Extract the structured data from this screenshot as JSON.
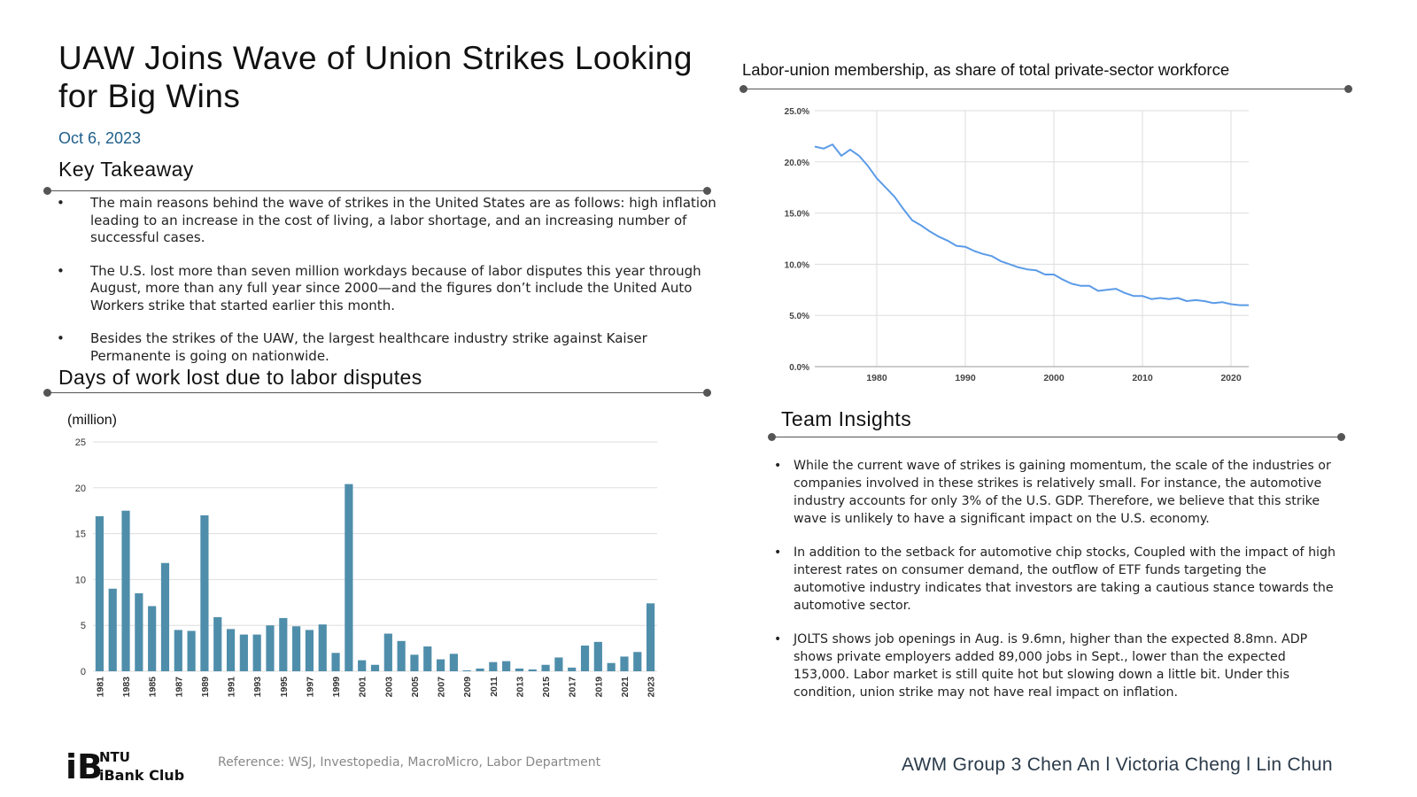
{
  "title": "UAW Joins Wave of Union Strikes Looking for Big Wins",
  "date": "Oct 6, 2023",
  "key_takeaway": {
    "heading": "Key Takeaway",
    "items": [
      "The main reasons behind the wave of strikes in the United States are as follows: high inflation leading to an increase in the cost of living, a labor shortage, and an increasing number of successful cases.",
      "The U.S. lost more than seven million workdays because of labor disputes this year through August, more than any full year since 2000—and the figures don’t include the United Auto Workers strike that started earlier this month.",
      "Besides the strikes of the UAW, the largest healthcare industry strike against Kaiser Permanente is going on nationwide."
    ]
  },
  "days_lost": {
    "heading": "Days of work lost due to labor disputes",
    "unit": "(million)"
  },
  "union_chart_title": "Labor-union membership, as share of total private-sector workforce",
  "team_insights": {
    "heading": "Team Insights",
    "items": [
      "While the current wave of strikes is gaining momentum, the scale of the industries or companies involved in these strikes is relatively small. For instance, the automotive industry accounts for only 3% of the U.S. GDP. Therefore, we believe that this strike wave is unlikely to have a significant impact on the U.S. economy.",
      "In addition to the setback for automotive chip stocks, Coupled with the impact of high interest rates on consumer demand, the outflow of ETF funds targeting the automotive industry indicates that investors are taking a cautious stance towards the automotive sector.",
      "JOLTS shows job openings in Aug. is 9.6mn, higher than the expected 8.8mn. ADP shows private employers added 89,000 jobs in Sept., lower than the expected 153,000. Labor market is still quite hot but slowing down a little bit. Under this condition, union strike may not have real impact on inflation."
    ]
  },
  "reference": "Reference: WSJ, Investopedia, MacroMicro, Labor Department",
  "credits": "AWM Group 3 Chen An l Victoria Cheng l Lin Chun",
  "logo": {
    "mark": "iB",
    "line1": "NTU",
    "line2": "iBank Club"
  },
  "colors": {
    "bar": "#4f8eab",
    "line": "#5b9be8",
    "date": "#1f5f8b",
    "grid": "#dddddd"
  },
  "chart_data": [
    {
      "type": "bar",
      "ylim": [
        0,
        25
      ],
      "yticks": [
        0,
        5,
        10,
        15,
        20,
        25
      ],
      "categories": [
        "1981",
        "1982",
        "1983",
        "1984",
        "1985",
        "1986",
        "1987",
        "1988",
        "1989",
        "1990",
        "1991",
        "1992",
        "1993",
        "1994",
        "1995",
        "1996",
        "1997",
        "1998",
        "1999",
        "2000",
        "2001",
        "2002",
        "2003",
        "2004",
        "2005",
        "2006",
        "2007",
        "2008",
        "2009",
        "2010",
        "2011",
        "2012",
        "2013",
        "2014",
        "2015",
        "2016",
        "2017",
        "2018",
        "2019",
        "2020",
        "2021",
        "2022",
        "2023"
      ],
      "xtick_labels": [
        "1981",
        "1983",
        "1985",
        "1987",
        "1989",
        "1991",
        "1993",
        "1995",
        "1997",
        "1999",
        "2001",
        "2003",
        "2005",
        "2007",
        "2009",
        "2011",
        "2013",
        "2015",
        "2017",
        "2019",
        "2021",
        "2023"
      ],
      "values": [
        16.9,
        9.0,
        17.5,
        8.5,
        7.1,
        11.8,
        4.5,
        4.4,
        17.0,
        5.9,
        4.6,
        4.0,
        4.0,
        5.0,
        5.8,
        4.9,
        4.5,
        5.1,
        2.0,
        20.4,
        1.2,
        0.7,
        4.1,
        3.3,
        1.8,
        2.7,
        1.3,
        1.9,
        0.1,
        0.3,
        1.0,
        1.1,
        0.3,
        0.2,
        0.7,
        1.5,
        0.4,
        2.8,
        3.2,
        0.9,
        1.6,
        2.1,
        7.4
      ]
    },
    {
      "type": "line",
      "title": "Labor-union membership, as share of total private-sector workforce",
      "xlim": [
        1973,
        2022
      ],
      "ylim": [
        0,
        25
      ],
      "xticks": [
        1980,
        1990,
        2000,
        2010,
        2020
      ],
      "yticks": [
        "0.0%",
        "5.0%",
        "10.0%",
        "15.0%",
        "20.0%",
        "25.0%"
      ],
      "x": [
        1973,
        1974,
        1975,
        1976,
        1977,
        1978,
        1979,
        1980,
        1981,
        1982,
        1983,
        1984,
        1985,
        1986,
        1987,
        1988,
        1989,
        1990,
        1991,
        1992,
        1993,
        1994,
        1995,
        1996,
        1997,
        1998,
        1999,
        2000,
        2001,
        2002,
        2003,
        2004,
        2005,
        2006,
        2007,
        2008,
        2009,
        2010,
        2011,
        2012,
        2013,
        2014,
        2015,
        2016,
        2017,
        2018,
        2019,
        2020,
        2021,
        2022
      ],
      "y": [
        21.5,
        21.3,
        21.7,
        20.6,
        21.2,
        20.6,
        19.6,
        18.4,
        17.5,
        16.6,
        15.4,
        14.3,
        13.8,
        13.2,
        12.7,
        12.3,
        11.8,
        11.7,
        11.3,
        11.0,
        10.8,
        10.3,
        10.0,
        9.7,
        9.5,
        9.4,
        9.0,
        9.0,
        8.5,
        8.1,
        7.9,
        7.9,
        7.4,
        7.5,
        7.6,
        7.2,
        6.9,
        6.9,
        6.6,
        6.7,
        6.6,
        6.7,
        6.4,
        6.5,
        6.4,
        6.2,
        6.3,
        6.1,
        6.0,
        6.0
      ]
    }
  ]
}
